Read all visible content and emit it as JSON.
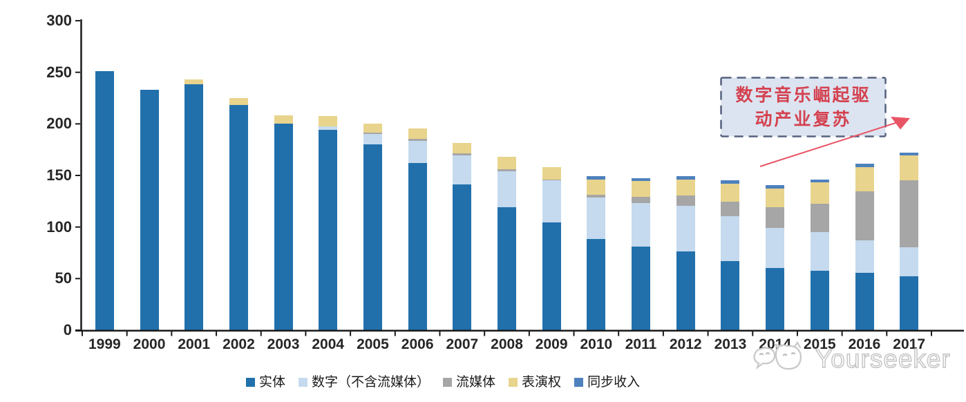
{
  "chart_data": {
    "type": "bar",
    "stacked": true,
    "x": [
      "1999",
      "2000",
      "2001",
      "2002",
      "2003",
      "2004",
      "2005",
      "2006",
      "2007",
      "2008",
      "2009",
      "2010",
      "2011",
      "2012",
      "2013",
      "2014",
      "2015",
      "2016",
      "2017"
    ],
    "series": [
      {
        "name": "实体",
        "color": "#2170AC",
        "values": [
          252,
          234,
          239,
          219,
          201,
          195,
          181,
          163,
          142,
          120,
          105,
          89,
          82,
          77,
          68,
          61,
          58,
          56,
          53
        ]
      },
      {
        "name": "数字（不含流媒体）",
        "color": "#C5DAEE",
        "values": [
          0,
          0,
          0,
          0,
          0,
          3,
          10,
          21,
          28,
          35,
          41,
          40,
          42,
          44,
          43,
          39,
          38,
          32,
          28
        ]
      },
      {
        "name": "流媒体",
        "color": "#A6A6A6",
        "values": [
          0,
          0,
          0,
          0,
          0,
          0,
          1,
          2,
          2,
          2,
          1,
          3,
          6,
          10,
          14,
          20,
          27,
          47,
          65
        ]
      },
      {
        "name": "表演权",
        "color": "#E8D48C",
        "values": [
          0,
          0,
          5,
          7,
          8,
          10,
          9,
          10,
          10,
          12,
          12,
          15,
          15,
          16,
          18,
          18,
          21,
          24,
          24
        ]
      },
      {
        "name": "同步收入",
        "color": "#4E81BD",
        "values": [
          0,
          0,
          0,
          0,
          0,
          0,
          0,
          0,
          0,
          0,
          0,
          3,
          3,
          3,
          3,
          3,
          3,
          3,
          3
        ]
      }
    ],
    "ylim": [
      0,
      300
    ],
    "yticks": [
      0,
      50,
      100,
      150,
      200,
      250,
      300
    ],
    "grid": false,
    "legend_position": "bottom"
  },
  "annotation": {
    "line1": "数字音乐崛起驱",
    "line2": "动产业复苏",
    "box_fill": "#DCE4F1",
    "border_color": "#55617E",
    "text_color": "#D4414F",
    "arrow_color": "#E85565"
  },
  "axis": {
    "line_color": "#1a1a1a",
    "label_color": "#262626"
  },
  "watermark": {
    "text": "Yourseeker",
    "logo": "yourseeker-cat-logo",
    "color": "#C5C5C5"
  }
}
